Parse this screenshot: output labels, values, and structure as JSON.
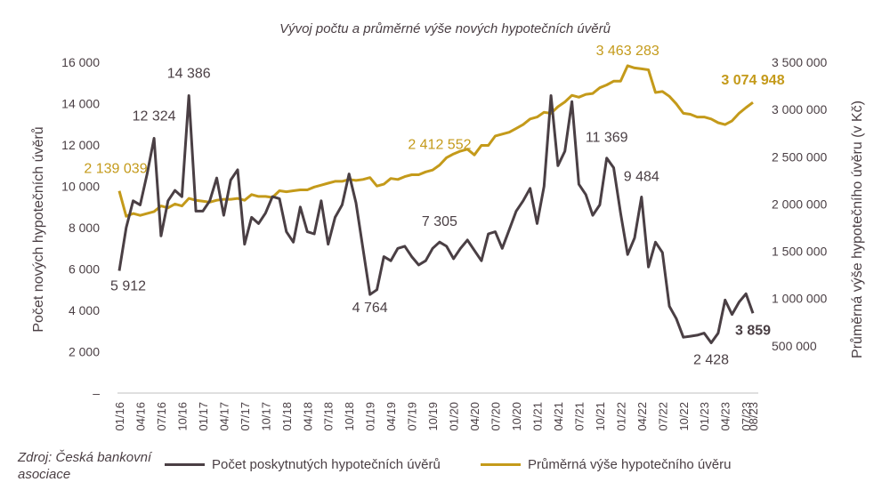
{
  "colors": {
    "count": "#4a3f44",
    "average": "#c49a1a",
    "text": "#4a3f44",
    "axis": "#bfbfbf"
  },
  "source": "Zdroj: Česká bankovní asociace",
  "legend": {
    "count": "Počet poskytnutých hypotečních úvěrů",
    "average": "Průměrná výše hypotečního úvěru"
  },
  "chart_data": {
    "type": "line",
    "title": "Vývoj počtu a průměrné výše nových hypotečních úvěrů",
    "x_tick_labels": [
      "01/16",
      "04/16",
      "07/16",
      "10/16",
      "01/17",
      "04/17",
      "07/17",
      "10/17",
      "01/18",
      "04/18",
      "07/18",
      "10/18",
      "01/19",
      "04/19",
      "07/19",
      "10/19",
      "01/20",
      "04/20",
      "07/20",
      "10/20",
      "01/21",
      "04/21",
      "07/21",
      "10/21",
      "01/22",
      "04/22",
      "07/22",
      "10/22",
      "01/23",
      "04/23",
      "07/23"
    ],
    "x_start": "01/16",
    "x_end": "08/23",
    "y_left": {
      "label": "Počet nových hypotečních úvěrů",
      "ylim": [
        0,
        16000
      ],
      "ticks": [
        0,
        2000,
        4000,
        6000,
        8000,
        10000,
        12000,
        14000,
        16000
      ],
      "tick_labels": [
        "–",
        "2 000",
        "4 000",
        "6 000",
        "8 000",
        "10 000",
        "12 000",
        "14 000",
        "16 000"
      ]
    },
    "y_right": {
      "label": "Průměrná výše hypotečního úvěru (v Kč)",
      "ylim": [
        0,
        3500000
      ],
      "ticks": [
        500000,
        1000000,
        1500000,
        2000000,
        2500000,
        3000000,
        3500000
      ],
      "tick_labels": [
        "500 000",
        "1 000 000",
        "1 500 000",
        "2 000 000",
        "2 500 000",
        "3 000 000",
        "3 500 000"
      ]
    },
    "series": [
      {
        "name": "Počet poskytnutých hypotečních úvěrů",
        "axis": "left",
        "values": [
          5912,
          8000,
          9300,
          9100,
          10600,
          12324,
          7600,
          9300,
          9800,
          9500,
          14386,
          8800,
          8800,
          9300,
          10400,
          8600,
          10300,
          10800,
          7200,
          8500,
          8200,
          8700,
          9500,
          9400,
          7800,
          7300,
          9000,
          7800,
          7700,
          9300,
          7200,
          8500,
          9100,
          10600,
          9200,
          7000,
          4764,
          5000,
          6600,
          6400,
          7000,
          7100,
          6600,
          6200,
          6400,
          7000,
          7305,
          7100,
          6500,
          7000,
          7400,
          6900,
          6400,
          7700,
          7800,
          7000,
          7900,
          8800,
          9300,
          9900,
          8200,
          10000,
          14386,
          11000,
          11700,
          14100,
          10100,
          9600,
          8600,
          9100,
          11369,
          10900,
          8700,
          6700,
          7500,
          9484,
          6100,
          7300,
          6800,
          4200,
          3600,
          2700,
          2750,
          2800,
          2900,
          2428,
          2900,
          4500,
          3800,
          4400,
          4800,
          3859
        ],
        "labels": [
          {
            "month": 0,
            "text": "5 912"
          },
          {
            "month": 5,
            "text": "12 324"
          },
          {
            "month": 10,
            "text": "14 386"
          },
          {
            "month": 36,
            "text": "4 764"
          },
          {
            "month": 46,
            "text": "7 305"
          },
          {
            "month": 70,
            "text": "11 369"
          },
          {
            "month": 75,
            "text": "9 484"
          },
          {
            "month": 85,
            "text": "2 428"
          },
          {
            "month": 91,
            "text": "3 859"
          }
        ]
      },
      {
        "name": "Průměrná výše hypotečního úvěru",
        "axis": "right",
        "values": [
          2139039,
          1870000,
          1900000,
          1880000,
          1900000,
          1920000,
          1980000,
          1960000,
          2000000,
          1980000,
          2060000,
          2040000,
          2030000,
          2020000,
          2040000,
          2050000,
          2050000,
          2060000,
          2040000,
          2100000,
          2080000,
          2080000,
          2070000,
          2140000,
          2130000,
          2140000,
          2150000,
          2150000,
          2180000,
          2200000,
          2220000,
          2240000,
          2240000,
          2260000,
          2250000,
          2260000,
          2280000,
          2190000,
          2210000,
          2270000,
          2260000,
          2290000,
          2310000,
          2310000,
          2340000,
          2360000,
          2412552,
          2490000,
          2530000,
          2560000,
          2580000,
          2520000,
          2620000,
          2620000,
          2720000,
          2740000,
          2760000,
          2800000,
          2840000,
          2900000,
          2920000,
          2970000,
          2960000,
          3030000,
          3080000,
          3150000,
          3130000,
          3160000,
          3170000,
          3230000,
          3260000,
          3300000,
          3300000,
          3463283,
          3440000,
          3430000,
          3420000,
          3180000,
          3190000,
          3140000,
          3060000,
          2960000,
          2950000,
          2920000,
          2920000,
          2900000,
          2860000,
          2840000,
          2880000,
          2960000,
          3020000,
          3074948
        ],
        "labels": [
          {
            "month": 0,
            "text": "2 139 039"
          },
          {
            "month": 46,
            "text": "2 412 552"
          },
          {
            "month": 73,
            "text": "3 463 283"
          },
          {
            "month": 91,
            "text": "3 074 948"
          }
        ]
      }
    ],
    "grid": false,
    "legend_position": "bottom"
  }
}
